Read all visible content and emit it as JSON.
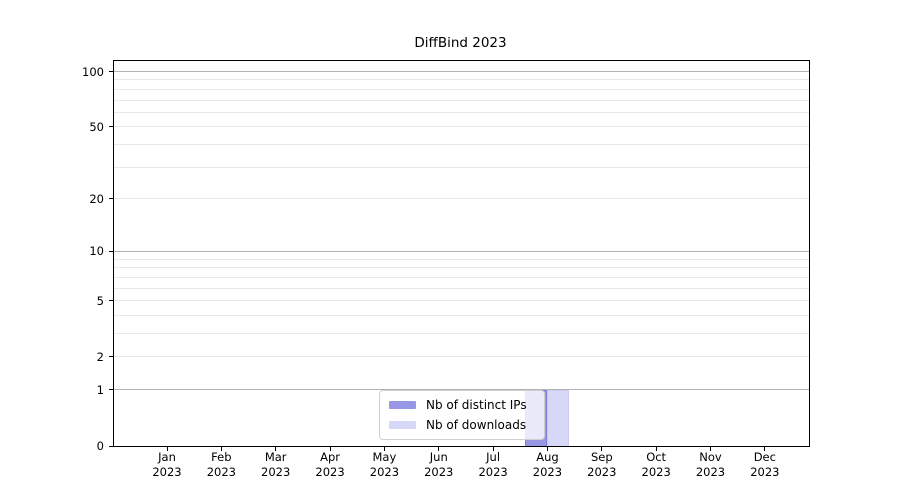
{
  "title": "DiffBind 2023",
  "chart_data": {
    "type": "bar",
    "title": "DiffBind 2023",
    "categories": [
      "Jan 2023",
      "Feb 2023",
      "Mar 2023",
      "Apr 2023",
      "May 2023",
      "Jun 2023",
      "Jul 2023",
      "Aug 2023",
      "Sep 2023",
      "Oct 2023",
      "Nov 2023",
      "Dec 2023"
    ],
    "series": [
      {
        "name": "Nb of distinct IPs",
        "color": "#9797e5",
        "border_color": "#8080d8",
        "values": [
          0,
          0,
          0,
          0,
          0,
          0,
          0,
          1,
          0,
          0,
          0,
          0
        ]
      },
      {
        "name": "Nb of downloads",
        "color": "#d7d7f8",
        "border_color": "#c9c9f0",
        "values": [
          0,
          0,
          0,
          0,
          0,
          0,
          0,
          1,
          0,
          0,
          0,
          0
        ]
      }
    ],
    "ylabel": "",
    "xlabel": "",
    "yscale": "log1p",
    "ylim": [
      0,
      114
    ],
    "yticks": [
      0,
      1,
      2,
      5,
      10,
      20,
      50,
      100
    ],
    "gridlines_major": [
      1,
      10,
      100
    ],
    "gridlines_minor": [
      2,
      3,
      4,
      5,
      6,
      7,
      8,
      9,
      20,
      30,
      40,
      50,
      60,
      70,
      80,
      90
    ],
    "grid": true,
    "legend_position": "bottom-center"
  },
  "colors": {
    "axis": "#000000",
    "grid_major": "#b3b3b3",
    "grid_minor": "#e9e9e9",
    "background": "#ffffff"
  }
}
